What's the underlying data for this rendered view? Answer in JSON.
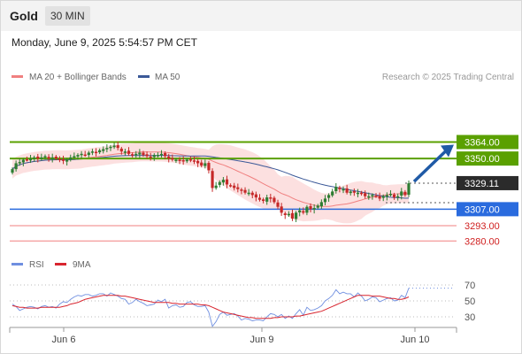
{
  "header": {
    "title": "Gold",
    "timeframe": "30 MIN"
  },
  "datetime": "Monday, June 9, 2025 5:54:57 PM CET",
  "legend": {
    "ma20_bb": "MA 20 + Bollinger Bands",
    "ma50": "MA 50",
    "copyright": "Research © 2025 Trading Central"
  },
  "rsi_legend": {
    "rsi": "RSI",
    "ma9": "9MA"
  },
  "colors": {
    "candle_up": "#2e7d32",
    "candle_down": "#c62828",
    "bollinger_fill": "#fcdada",
    "ma20": "#f08080",
    "ma50": "#3b5998",
    "resistance": "#5aa000",
    "support": "#2a6bde",
    "weak_level": "#f08080",
    "arrow": "#1f5aa6",
    "rsi": "#6f8fe0",
    "rsi_ma": "#d8252f"
  },
  "chart_data": [
    {
      "type": "candlestick",
      "x_ticks": [
        "Jun 6",
        "Jun 9",
        "Jun 10"
      ],
      "ylim": [
        3278,
        3375
      ],
      "current_price": 3329.11,
      "levels": [
        {
          "value": 3364.0,
          "label": "3364.00",
          "kind": "resistance"
        },
        {
          "value": 3350.0,
          "label": "3350.00",
          "kind": "resistance"
        },
        {
          "value": 3329.11,
          "label": "3329.11",
          "kind": "current"
        },
        {
          "value": 3307.0,
          "label": "3307.00",
          "kind": "support"
        },
        {
          "value": 3293.0,
          "label": "3293.00",
          "kind": "weak"
        },
        {
          "value": 3280.0,
          "label": "3280.00",
          "kind": "weak"
        }
      ],
      "arrow_target": 3364.0,
      "closes": [
        3341,
        3346,
        3347,
        3349,
        3349,
        3350,
        3351,
        3350,
        3351,
        3352,
        3350,
        3351,
        3350,
        3349,
        3348,
        3349,
        3351,
        3352,
        3353,
        3354,
        3353,
        3355,
        3356,
        3355,
        3357,
        3358,
        3359,
        3360,
        3361,
        3359,
        3356,
        3356,
        3354,
        3353,
        3354,
        3355,
        3353,
        3352,
        3351,
        3353,
        3353,
        3354,
        3352,
        3350,
        3349,
        3349,
        3348,
        3348,
        3349,
        3349,
        3348,
        3346,
        3344,
        3346,
        3340,
        3325,
        3327,
        3330,
        3332,
        3328,
        3327,
        3325,
        3324,
        3323,
        3321,
        3321,
        3319,
        3317,
        3315,
        3314,
        3317,
        3316,
        3313,
        3309,
        3304,
        3302,
        3303,
        3299,
        3304,
        3306,
        3304,
        3309,
        3307,
        3308,
        3310,
        3313,
        3316,
        3319,
        3322,
        3326,
        3324,
        3324,
        3321,
        3322,
        3321,
        3321,
        3320,
        3318,
        3318,
        3319,
        3318,
        3316,
        3318,
        3319,
        3320,
        3317,
        3318,
        3322,
        3319,
        3329
      ]
    },
    {
      "type": "line",
      "title": "RSI",
      "y_ticks": [
        70,
        50,
        30
      ],
      "ylim": [
        10,
        80
      ],
      "series": [
        {
          "name": "RSI",
          "values": [
            46,
            43,
            38,
            40,
            42,
            43,
            42,
            40,
            43,
            44,
            42,
            43,
            41,
            46,
            49,
            48,
            52,
            55,
            57,
            56,
            58,
            58,
            56,
            57,
            59,
            59,
            56,
            60,
            58,
            56,
            53,
            52,
            46,
            48,
            52,
            49,
            47,
            44,
            45,
            46,
            51,
            49,
            52,
            41,
            44,
            45,
            42,
            43,
            48,
            49,
            45,
            43,
            43,
            44,
            36,
            18,
            24,
            33,
            36,
            32,
            33,
            34,
            31,
            26,
            28,
            27,
            25,
            26,
            26,
            25,
            30,
            34,
            33,
            30,
            33,
            28,
            31,
            28,
            34,
            39,
            32,
            42,
            38,
            39,
            41,
            44,
            50,
            53,
            57,
            64,
            59,
            61,
            59,
            59,
            55,
            60,
            56,
            50,
            52,
            55,
            54,
            49,
            51,
            53,
            54,
            50,
            51,
            57,
            54,
            66
          ]
        },
        {
          "name": "9MA",
          "values": [
            44,
            43,
            42,
            42,
            41,
            41,
            41,
            41,
            42,
            42,
            42,
            42,
            42,
            42,
            43,
            44,
            46,
            47,
            48,
            50,
            52,
            53,
            54,
            55,
            56,
            57,
            57,
            57,
            57,
            57,
            56,
            56,
            55,
            54,
            53,
            52,
            51,
            50,
            49,
            48,
            48,
            48,
            48,
            48,
            47,
            47,
            46,
            46,
            46,
            46,
            46,
            46,
            45,
            45,
            44,
            42,
            40,
            38,
            36,
            35,
            34,
            33,
            32,
            31,
            30,
            29,
            29,
            28,
            28,
            28,
            28,
            28,
            29,
            29,
            30,
            30,
            30,
            30,
            31,
            31,
            32,
            33,
            34,
            35,
            36,
            37,
            39,
            41,
            43,
            45,
            47,
            49,
            51,
            53,
            55,
            57,
            57,
            57,
            57,
            56,
            56,
            56,
            55,
            54,
            53,
            53,
            52,
            52,
            53,
            55
          ]
        }
      ]
    }
  ]
}
